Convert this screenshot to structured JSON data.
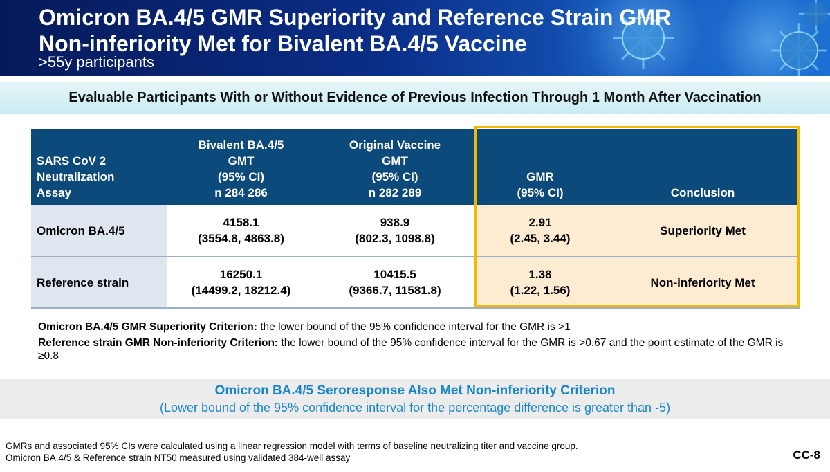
{
  "header": {
    "title_line1": "Omicron BA.4/5 GMR Superiority and Reference Strain GMR",
    "title_line2": "Non-inferiority Met for Bivalent BA.4/5 Vaccine",
    "subtitle": ">55y participants"
  },
  "section_heading": "Evaluable Participants With or Without Evidence of Previous Infection Through 1 Month After Vaccination",
  "table": {
    "headers": {
      "assay": [
        "SARS CoV 2",
        "Neutralization",
        "Assay"
      ],
      "bivalent": [
        "Bivalent BA.4/5",
        "GMT",
        "(95% CI)",
        "n  284 286"
      ],
      "original": [
        "Original Vaccine",
        "GMT",
        "(95% CI)",
        "n  282 289"
      ],
      "gmr": [
        "GMR",
        "(95% CI)"
      ],
      "conclusion": "Conclusion"
    },
    "rows": [
      {
        "assay": "Omicron BA.4/5",
        "bivalent_gmt": "4158.1",
        "bivalent_ci": "(3554.8, 4863.8)",
        "original_gmt": "938.9",
        "original_ci": "(802.3, 1098.8)",
        "gmr": "2.91",
        "gmr_ci": "(2.45, 3.44)",
        "conclusion": "Superiority Met"
      },
      {
        "assay": "Reference strain",
        "bivalent_gmt": "16250.1",
        "bivalent_ci": "(14499.2, 18212.4)",
        "original_gmt": "10415.5",
        "original_ci": "(9366.7, 11581.8)",
        "gmr": "1.38",
        "gmr_ci": "(1.22, 1.56)",
        "conclusion": "Non-inferiority Met"
      }
    ]
  },
  "criteria": [
    {
      "label": "Omicron BA.4/5 GMR Superiority Criterion:",
      "text": " the lower bound of the 95% confidence interval for the GMR is >1"
    },
    {
      "label": "Reference strain GMR Non-inferiority Criterion:",
      "text": " the lower bound of the 95% confidence interval for the GMR is >0.67 and the point estimate of the GMR is ≥0.8"
    }
  ],
  "callout": {
    "line1": "Omicron BA.4/5 Seroresponse Also Met Non-inferiority Criterion",
    "line2": "(Lower bound of the 95% confidence interval for the percentage difference is greater than -5)"
  },
  "footnotes": [
    "GMRs and associated 95% CIs were calculated using a linear regression model with terms of baseline neutralizing titer and vaccine group.",
    "Omicron BA.4/5 & Reference strain NT50 measured using validated 384-well assay"
  ],
  "slide_id": "CC-8",
  "colors": {
    "header_blue": "#0c4a7c",
    "highlight_gold": "#f5b800",
    "callout_blue": "#1a86c8",
    "gmr_fill": "#fdebd2"
  }
}
